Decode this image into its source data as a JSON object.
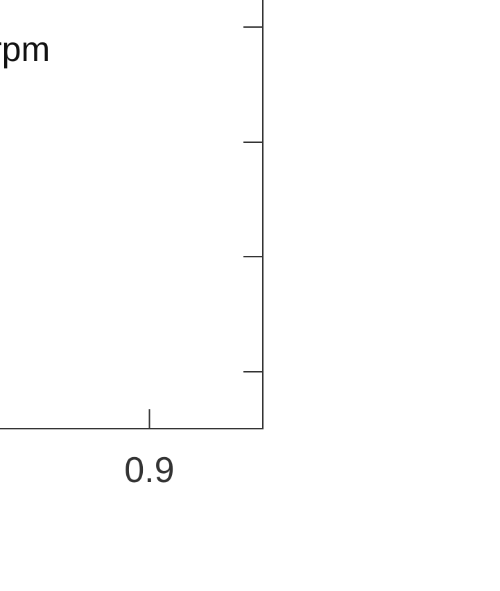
{
  "chart_data": {
    "type": "line",
    "title": "",
    "xlabel": "",
    "ylabel": "",
    "x_ticks": [
      0.9
    ],
    "x_tick_labels": [
      "0.9"
    ],
    "y_tick_count": 5,
    "xlim": [
      0.5,
      1.0
    ],
    "legend": {
      "placement": "top-left",
      "entries": [
        "rpm"
      ]
    },
    "grid": false,
    "series": [],
    "colors": {
      "axis": "#333333",
      "text": "#111111",
      "background": "#ffffff"
    }
  }
}
